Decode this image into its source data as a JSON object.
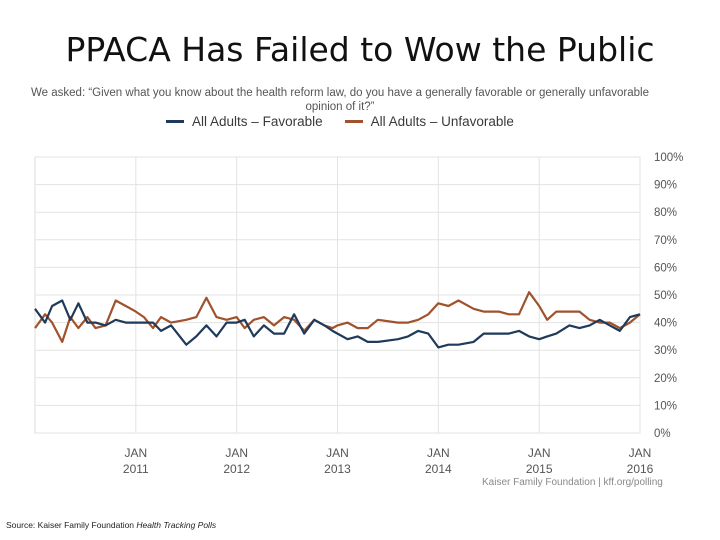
{
  "slide": {
    "title": "PPACA  Has Failed to Wow the Public",
    "source_prefix": "Source: Kaiser Family Foundation ",
    "source_italic": "Health Tracking Polls"
  },
  "chart_data": {
    "type": "line",
    "title": "",
    "subtitle": "We asked: “Given what you know about the health reform law, do you have a generally favorable or generally unfavorable opinion of it?”",
    "xlabel": "",
    "ylabel": "",
    "ylim": [
      0,
      100
    ],
    "yticks": [
      "100%",
      "90%",
      "80%",
      "70%",
      "60%",
      "50%",
      "40%",
      "30%",
      "20%",
      "10%",
      "0%"
    ],
    "ytick_values": [
      100,
      90,
      80,
      70,
      60,
      50,
      40,
      30,
      20,
      10,
      0
    ],
    "xlim": [
      2010.0,
      2016.0
    ],
    "xticks": [
      {
        "month": "JAN",
        "year": "2011",
        "x": 2011
      },
      {
        "month": "JAN",
        "year": "2012",
        "x": 2012
      },
      {
        "month": "JAN",
        "year": "2013",
        "x": 2013
      },
      {
        "month": "JAN",
        "year": "2014",
        "x": 2014
      },
      {
        "month": "JAN",
        "year": "2015",
        "x": 2015
      },
      {
        "month": "JAN",
        "year": "2016",
        "x": 2016
      }
    ],
    "attribution": "Kaiser Family Foundation | kff.org/polling",
    "grid": true,
    "legend_position": "top-center",
    "series": [
      {
        "name": "All Adults – Favorable",
        "color": "#1f3a5a",
        "x": [
          2010.0,
          2010.1,
          2010.17,
          2010.27,
          2010.35,
          2010.43,
          2010.52,
          2010.6,
          2010.7,
          2010.8,
          2010.9,
          2011.0,
          2011.08,
          2011.17,
          2011.25,
          2011.35,
          2011.5,
          2011.6,
          2011.7,
          2011.8,
          2011.9,
          2012.0,
          2012.08,
          2012.17,
          2012.27,
          2012.37,
          2012.47,
          2012.57,
          2012.67,
          2012.77,
          2012.87,
          2012.95,
          2013.0,
          2013.1,
          2013.2,
          2013.3,
          2013.4,
          2013.6,
          2013.7,
          2013.8,
          2013.9,
          2014.0,
          2014.1,
          2014.2,
          2014.35,
          2014.45,
          2014.53,
          2014.6,
          2014.7,
          2014.8,
          2014.9,
          2015.0,
          2015.08,
          2015.17,
          2015.3,
          2015.4,
          2015.5,
          2015.6,
          2015.7,
          2015.8,
          2015.9,
          2016.0
        ],
        "values": [
          45,
          40,
          46,
          48,
          41,
          47,
          40,
          40,
          39,
          41,
          40,
          40,
          40,
          40,
          37,
          39,
          32,
          35,
          39,
          35,
          40,
          40,
          41,
          35,
          39,
          36,
          36,
          43,
          36,
          41,
          39,
          37,
          36,
          34,
          35,
          33,
          33,
          34,
          35,
          37,
          36,
          31,
          32,
          32,
          33,
          36,
          36,
          36,
          36,
          37,
          35,
          34,
          35,
          36,
          39,
          38,
          39,
          41,
          39,
          37,
          42,
          43
        ]
      },
      {
        "name": "All Adults – Unfavorable",
        "color": "#a0522d",
        "x": [
          2010.0,
          2010.1,
          2010.17,
          2010.27,
          2010.35,
          2010.43,
          2010.52,
          2010.6,
          2010.7,
          2010.8,
          2010.9,
          2011.0,
          2011.08,
          2011.17,
          2011.25,
          2011.35,
          2011.5,
          2011.6,
          2011.7,
          2011.8,
          2011.9,
          2012.0,
          2012.08,
          2012.17,
          2012.27,
          2012.37,
          2012.47,
          2012.57,
          2012.67,
          2012.77,
          2012.87,
          2012.95,
          2013.0,
          2013.1,
          2013.2,
          2013.3,
          2013.4,
          2013.6,
          2013.7,
          2013.8,
          2013.9,
          2014.0,
          2014.1,
          2014.2,
          2014.35,
          2014.45,
          2014.53,
          2014.6,
          2014.7,
          2014.8,
          2014.9,
          2015.0,
          2015.08,
          2015.17,
          2015.3,
          2015.4,
          2015.5,
          2015.6,
          2015.7,
          2015.8,
          2015.9,
          2016.0
        ],
        "values": [
          38,
          43,
          40,
          33,
          42,
          38,
          42,
          38,
          39,
          48,
          46,
          44,
          42,
          38,
          42,
          40,
          41,
          42,
          49,
          42,
          41,
          42,
          38,
          41,
          42,
          39,
          42,
          41,
          37,
          41,
          39,
          38,
          39,
          40,
          38,
          38,
          41,
          40,
          40,
          41,
          43,
          47,
          46,
          48,
          45,
          44,
          44,
          44,
          43,
          43,
          51,
          46,
          41,
          44,
          44,
          44,
          41,
          40,
          40,
          38,
          40,
          43
        ]
      }
    ]
  }
}
